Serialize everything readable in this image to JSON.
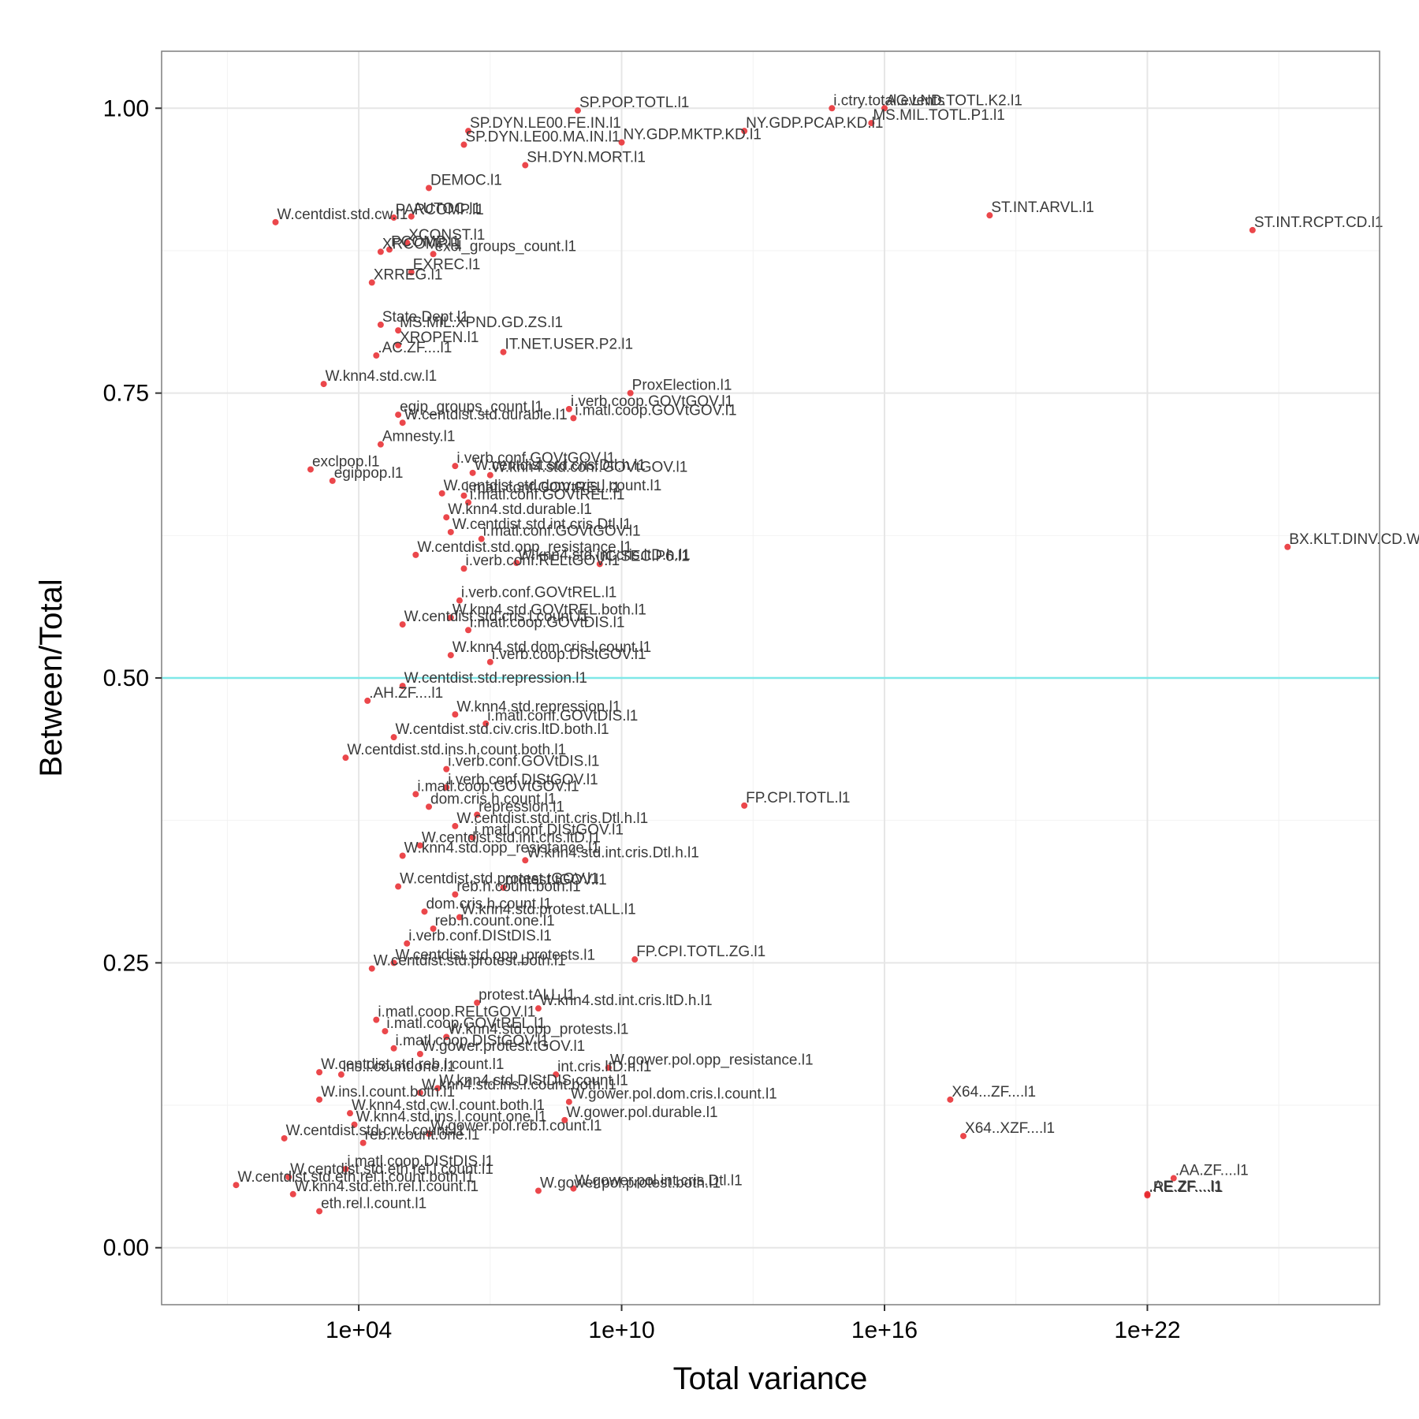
{
  "chart_data": {
    "type": "scatter",
    "title": "",
    "xlabel": "Total variance",
    "ylabel": "Between/Total",
    "x_scale": "log10",
    "xlim_log10": [
      -0.5,
      27.3
    ],
    "ylim": [
      -0.05,
      1.05
    ],
    "x_ticks_log10": [
      4,
      10,
      16,
      22
    ],
    "x_tick_labels": [
      "1e+04",
      "1e+10",
      "1e+16",
      "1e+22"
    ],
    "y_ticks": [
      0.0,
      0.25,
      0.5,
      0.75,
      1.0
    ],
    "y_tick_labels": [
      "0.00",
      "0.25",
      "0.50",
      "0.75",
      "1.00"
    ],
    "reference_line": {
      "y": 0.5,
      "color": "#7fe8e8"
    },
    "point_color": "#e8272b",
    "grid": true,
    "points": [
      {
        "label": "SP.POP.TOTL.l1",
        "log10x": 9.0,
        "y": 0.998
      },
      {
        "label": "NY.GDP.PCAP.KD.l1",
        "log10x": 12.8,
        "y": 0.98
      },
      {
        "label": "i.ctry.total.events",
        "log10x": 14.8,
        "y": 1.0
      },
      {
        "label": "AG.LND.TOTL.K2.l1",
        "log10x": 16.0,
        "y": 1.0
      },
      {
        "label": "MS.MIL.TOTL.P1.l1",
        "log10x": 15.7,
        "y": 0.987
      },
      {
        "label": "NY.GDP.MKTP.KD.l1",
        "log10x": 10.0,
        "y": 0.97
      },
      {
        "label": "SP.DYN.LE00.FE.IN.l1",
        "log10x": 6.5,
        "y": 0.98
      },
      {
        "label": "SP.DYN.LE00.MA.IN.l1",
        "log10x": 6.4,
        "y": 0.968
      },
      {
        "label": "SH.DYN.MORT.l1",
        "log10x": 7.8,
        "y": 0.95
      },
      {
        "label": "DEMOC.l1",
        "log10x": 5.6,
        "y": 0.93
      },
      {
        "label": "PARCOMP.l1",
        "log10x": 4.8,
        "y": 0.904
      },
      {
        "label": "AUTOC.l1",
        "log10x": 5.2,
        "y": 0.905
      },
      {
        "label": "W.centdist.std.cw.l1",
        "log10x": 2.1,
        "y": 0.9
      },
      {
        "label": "ST.INT.ARVL.l1",
        "log10x": 18.4,
        "y": 0.906
      },
      {
        "label": "ST.INT.RCPT.CD.l1",
        "log10x": 24.4,
        "y": 0.893
      },
      {
        "label": "XCONST.l1",
        "log10x": 5.1,
        "y": 0.882
      },
      {
        "label": "PCOMP.l1",
        "log10x": 4.7,
        "y": 0.876
      },
      {
        "label": "XRCOMP.l1",
        "log10x": 4.5,
        "y": 0.874
      },
      {
        "label": "excl_groups_count.l1",
        "log10x": 5.7,
        "y": 0.872
      },
      {
        "label": "EXREC.l1",
        "log10x": 5.2,
        "y": 0.856
      },
      {
        "label": "XRREG.l1",
        "log10x": 4.3,
        "y": 0.847
      },
      {
        "label": "State.Dept.l1",
        "log10x": 4.5,
        "y": 0.81
      },
      {
        "label": "MS.MIL.XPND.GD.ZS.l1",
        "log10x": 4.9,
        "y": 0.805
      },
      {
        "label": "XROPEN.l1",
        "log10x": 4.9,
        "y": 0.792
      },
      {
        "label": "IT.NET.USER.P2.l1",
        "log10x": 7.3,
        "y": 0.786
      },
      {
        "label": ".AC.ZF....l1",
        "log10x": 4.4,
        "y": 0.783
      },
      {
        "label": "W.knn4.std.cw.l1",
        "log10x": 3.2,
        "y": 0.758
      },
      {
        "label": "ProxElection.l1",
        "log10x": 10.2,
        "y": 0.75
      },
      {
        "label": "egip_groups_count.l1",
        "log10x": 4.9,
        "y": 0.731
      },
      {
        "label": "i.verb.coop.GOVtGOV.l1",
        "log10x": 8.8,
        "y": 0.736
      },
      {
        "label": "W.centdist.std.durable.l1",
        "log10x": 5.0,
        "y": 0.724
      },
      {
        "label": "i.matl.coop.GOVtGOV.l1",
        "log10x": 8.9,
        "y": 0.728
      },
      {
        "label": "Amnesty.l1",
        "log10x": 4.5,
        "y": 0.705
      },
      {
        "label": "exclpop.l1",
        "log10x": 2.9,
        "y": 0.683
      },
      {
        "label": "egippop.l1",
        "log10x": 3.4,
        "y": 0.673
      },
      {
        "label": "i.verb.conf.GOVtGOV.l1",
        "log10x": 6.2,
        "y": 0.686
      },
      {
        "label": "W.centdist.std.cris.Dtl.h.l1",
        "log10x": 6.6,
        "y": 0.68
      },
      {
        "label": "W.knn4.std.conf.GOVtGOV.l1",
        "log10x": 7.0,
        "y": 0.678
      },
      {
        "label": "i.matl.conf.GOVtREL.l1",
        "log10x": 6.4,
        "y": 0.66
      },
      {
        "label": "W.centdist.std.dom.cris.l.count.l1",
        "log10x": 5.9,
        "y": 0.662
      },
      {
        "label": "i.matl.conf.GOVtREL.l1",
        "log10x": 6.5,
        "y": 0.654
      },
      {
        "label": "W.knn4.std.durable.l1",
        "log10x": 6.0,
        "y": 0.641
      },
      {
        "label": "W.centdist.std.int.cris.Dtl.l1",
        "log10x": 6.1,
        "y": 0.628
      },
      {
        "label": "i.matl.conf.GOVtGOV.l1",
        "log10x": 6.8,
        "y": 0.622
      },
      {
        "label": "W.centdist.std.opp_resistance.l1",
        "log10x": 5.3,
        "y": 0.608
      },
      {
        "label": "W.knn4.std.int.cris.ltD.h.l1",
        "log10x": 7.6,
        "y": 0.601
      },
      {
        "label": "i.verb.conf.RELtGOV.l1",
        "log10x": 6.4,
        "y": 0.596
      },
      {
        "label": "IC.SEC.P6.l1",
        "log10x": 9.5,
        "y": 0.6
      },
      {
        "label": "BX.KLT.DINV.CD.WD.l1",
        "log10x": 25.2,
        "y": 0.615
      },
      {
        "label": "i.verb.conf.GOVtREL.l1",
        "log10x": 6.3,
        "y": 0.568
      },
      {
        "label": "W.centdist.std.cris.l.count.l1",
        "log10x": 5.0,
        "y": 0.547
      },
      {
        "label": "W.knn4.std.GOVtREL.both.l1",
        "log10x": 6.1,
        "y": 0.553
      },
      {
        "label": "i.matl.coop.GOVtDIS.l1",
        "log10x": 6.5,
        "y": 0.542
      },
      {
        "label": "W.knn4.std.dom.cris.l.count.l1",
        "log10x": 6.1,
        "y": 0.52
      },
      {
        "label": "i.verb.coop.DIStGOV.l1",
        "log10x": 7.0,
        "y": 0.514
      },
      {
        "label": "W.centdist.std.repression.l1",
        "log10x": 5.0,
        "y": 0.493
      },
      {
        "label": ".AH.ZF....l1",
        "log10x": 4.2,
        "y": 0.48
      },
      {
        "label": "W.knn4.std.repression.l1",
        "log10x": 6.2,
        "y": 0.468
      },
      {
        "label": "i.matl.conf.GOVtDIS.l1",
        "log10x": 6.9,
        "y": 0.46
      },
      {
        "label": "W.centdist.std.civ.cris.ltD.both.l1",
        "log10x": 4.8,
        "y": 0.448
      },
      {
        "label": "W.centdist.std.ins.h.count.both.l1",
        "log10x": 3.7,
        "y": 0.43
      },
      {
        "label": "i.verb.conf.GOVtDIS.l1",
        "log10x": 6.0,
        "y": 0.42
      },
      {
        "label": "i.verb.conf.DIStGOV.l1",
        "log10x": 6.0,
        "y": 0.404
      },
      {
        "label": "i.matl.coop.GOVtGOV.l1",
        "log10x": 5.3,
        "y": 0.398
      },
      {
        "label": "FP.CPI.TOTL.l1",
        "log10x": 12.8,
        "y": 0.388
      },
      {
        "label": "dom.cris.h.count.l1",
        "log10x": 5.6,
        "y": 0.387
      },
      {
        "label": "repression.l1",
        "log10x": 6.7,
        "y": 0.38
      },
      {
        "label": "W.centdist.std.int.cris.Dtl.h.l1",
        "log10x": 6.2,
        "y": 0.37
      },
      {
        "label": "i.matl.conf.DIStGOV.l1",
        "log10x": 6.6,
        "y": 0.36
      },
      {
        "label": "W.centdist.std.int.cris.ltD.l1",
        "log10x": 5.4,
        "y": 0.353
      },
      {
        "label": "W.knn4.std.opp_resistance.l1",
        "log10x": 5.0,
        "y": 0.344
      },
      {
        "label": "W.knn4.std.int.cris.Dtl.h.l1",
        "log10x": 7.8,
        "y": 0.34
      },
      {
        "label": "W.centdist.std.protest.tGOV.l1",
        "log10x": 4.9,
        "y": 0.317
      },
      {
        "label": "protest.tGOV.l1",
        "log10x": 7.3,
        "y": 0.316
      },
      {
        "label": "reb.h.count.both.l1",
        "log10x": 6.2,
        "y": 0.31
      },
      {
        "label": "dom.cris.h.count.l1",
        "log10x": 5.5,
        "y": 0.295
      },
      {
        "label": "W.knn4.std.protest.tALL.l1",
        "log10x": 6.3,
        "y": 0.29
      },
      {
        "label": "reb.h.count.one.l1",
        "log10x": 5.7,
        "y": 0.28
      },
      {
        "label": "i.verb.conf.DIStDIS.l1",
        "log10x": 5.1,
        "y": 0.267
      },
      {
        "label": "FP.CPI.TOTL.ZG.l1",
        "log10x": 10.3,
        "y": 0.253
      },
      {
        "label": "W.centdist.std.opp_protests.l1",
        "log10x": 4.8,
        "y": 0.25
      },
      {
        "label": "W.centdist.std.protest.both.l1",
        "log10x": 4.3,
        "y": 0.245
      },
      {
        "label": "protest.tALL.l1",
        "log10x": 6.7,
        "y": 0.215
      },
      {
        "label": "W.knn4.std.int.cris.ltD.h.l1",
        "log10x": 8.1,
        "y": 0.21
      },
      {
        "label": "i.matl.coop.RELtGOV.l1",
        "log10x": 4.4,
        "y": 0.2
      },
      {
        "label": "i.matl.coop.GOVtREL.l1",
        "log10x": 4.6,
        "y": 0.19
      },
      {
        "label": "W.knn4.std.opp_protests.l1",
        "log10x": 6.0,
        "y": 0.185
      },
      {
        "label": "i.matl.coop.DIStGOV.l1",
        "log10x": 4.8,
        "y": 0.175
      },
      {
        "label": "W.gower.protest.tGOV.l1",
        "log10x": 5.4,
        "y": 0.17
      },
      {
        "label": "W.centdist.std.reb.l.count.l1",
        "log10x": 3.1,
        "y": 0.154
      },
      {
        "label": "ins.l.count.one.l1",
        "log10x": 3.6,
        "y": 0.152
      },
      {
        "label": "W.gower.pol.opp_resistance.l1",
        "log10x": 9.7,
        "y": 0.158
      },
      {
        "label": "int.cris.ltD.h.l1",
        "log10x": 8.5,
        "y": 0.152
      },
      {
        "label": "W.knn4.std.DIStDIS.count.l1",
        "log10x": 5.8,
        "y": 0.14
      },
      {
        "label": "W.knn4.std.ins.l.count.both.l1",
        "log10x": 5.4,
        "y": 0.136
      },
      {
        "label": "W.gower.pol.dom.cris.l.count.l1",
        "log10x": 8.8,
        "y": 0.128
      },
      {
        "label": "X64...ZF....l1",
        "log10x": 17.5,
        "y": 0.13
      },
      {
        "label": "W.ins.l.count.both.l1",
        "log10x": 3.1,
        "y": 0.13
      },
      {
        "label": "W.knn4.std.cw.l.count.both.l1",
        "log10x": 3.8,
        "y": 0.118
      },
      {
        "label": "W.gower.pol.durable.l1",
        "log10x": 8.7,
        "y": 0.112
      },
      {
        "label": "W.knn4.std.ins.l.count.one.l1",
        "log10x": 3.9,
        "y": 0.108
      },
      {
        "label": "X64..XZF....l1",
        "log10x": 17.8,
        "y": 0.098
      },
      {
        "label": "W.centdist.std.cw.l.count.l1",
        "log10x": 2.3,
        "y": 0.096
      },
      {
        "label": "W.gower.pol.reb.l.count.l1",
        "log10x": 5.6,
        "y": 0.1
      },
      {
        "label": "reb.l.count.one.l1",
        "log10x": 4.1,
        "y": 0.092
      },
      {
        "label": "i.matl.coop.DIStDIS.l1",
        "log10x": 3.7,
        "y": 0.069
      },
      {
        "label": "W.centdist.std.eth.rel.l.count.l1",
        "log10x": 2.4,
        "y": 0.062
      },
      {
        "label": "W.centdist.std.eth.rel.l.count.both.l1",
        "log10x": 1.2,
        "y": 0.055
      },
      {
        "label": "W.knn4.std.eth.rel.l.count.l1",
        "log10x": 2.5,
        "y": 0.047
      },
      {
        "label": "eth.rel.l.count.l1",
        "log10x": 3.1,
        "y": 0.032
      },
      {
        "label": "W.gower.pol.int.cris.Dtl.l1",
        "log10x": 8.9,
        "y": 0.052
      },
      {
        "label": ".AA.ZF....l1",
        "log10x": 22.6,
        "y": 0.061
      },
      {
        "label": ".RE.ZF....l1",
        "log10x": 22.0,
        "y": 0.046
      },
      {
        "label": ".AE.ZF....l1",
        "log10x": 22.0,
        "y": 0.047
      },
      {
        "label": "W.gower.pol.protest.both.l1",
        "log10x": 8.1,
        "y": 0.05
      }
    ]
  }
}
